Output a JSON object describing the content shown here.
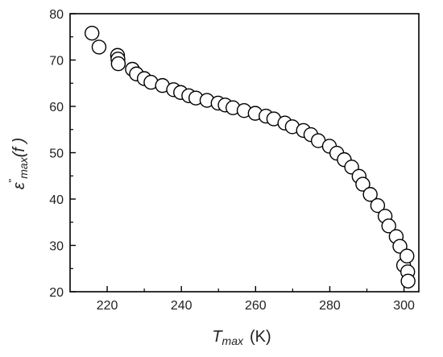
{
  "chart_data": {
    "type": "scatter",
    "title": "",
    "xlabel": {
      "main": "T",
      "sub": "max",
      "unit": "(K)"
    },
    "ylabel": {
      "main": "ε",
      "sup": "\"",
      "sub": "max",
      "tail": "(f )"
    },
    "xlim": [
      210,
      304
    ],
    "ylim": [
      20,
      80
    ],
    "xticks": [
      220,
      240,
      260,
      280,
      300
    ],
    "yticks": [
      20,
      30,
      40,
      50,
      60,
      70,
      80
    ],
    "grid": false,
    "legend": "none",
    "marker": {
      "shape": "open-circle",
      "stroke": "#000000",
      "fill": "#ffffff"
    },
    "series": [
      {
        "points": [
          [
            215.9,
            75.8
          ],
          [
            217.8,
            72.8
          ],
          [
            222.8,
            71.0
          ],
          [
            222.9,
            70.2
          ],
          [
            223.0,
            69.2
          ],
          [
            226.8,
            68.0
          ],
          [
            227.9,
            67.0
          ],
          [
            230.0,
            66.0
          ],
          [
            231.8,
            65.2
          ],
          [
            234.9,
            64.5
          ],
          [
            237.9,
            63.6
          ],
          [
            239.8,
            63.0
          ],
          [
            242.0,
            62.3
          ],
          [
            243.9,
            61.8
          ],
          [
            246.9,
            61.3
          ],
          [
            249.9,
            60.7
          ],
          [
            251.8,
            60.3
          ],
          [
            253.9,
            59.7
          ],
          [
            256.9,
            59.1
          ],
          [
            259.9,
            58.5
          ],
          [
            262.8,
            57.9
          ],
          [
            264.9,
            57.3
          ],
          [
            267.9,
            56.4
          ],
          [
            269.9,
            55.6
          ],
          [
            272.9,
            54.8
          ],
          [
            274.9,
            53.9
          ],
          [
            276.9,
            52.6
          ],
          [
            279.9,
            51.4
          ],
          [
            281.9,
            49.9
          ],
          [
            283.9,
            48.5
          ],
          [
            285.9,
            46.9
          ],
          [
            287.9,
            44.9
          ],
          [
            288.9,
            43.2
          ],
          [
            290.9,
            41.0
          ],
          [
            292.9,
            38.6
          ],
          [
            294.9,
            36.3
          ],
          [
            295.9,
            34.2
          ],
          [
            297.9,
            31.9
          ],
          [
            298.9,
            29.8
          ],
          [
            299.9,
            25.7
          ],
          [
            300.8,
            27.7
          ],
          [
            301.0,
            24.3
          ],
          [
            301.1,
            22.3
          ]
        ]
      }
    ]
  }
}
